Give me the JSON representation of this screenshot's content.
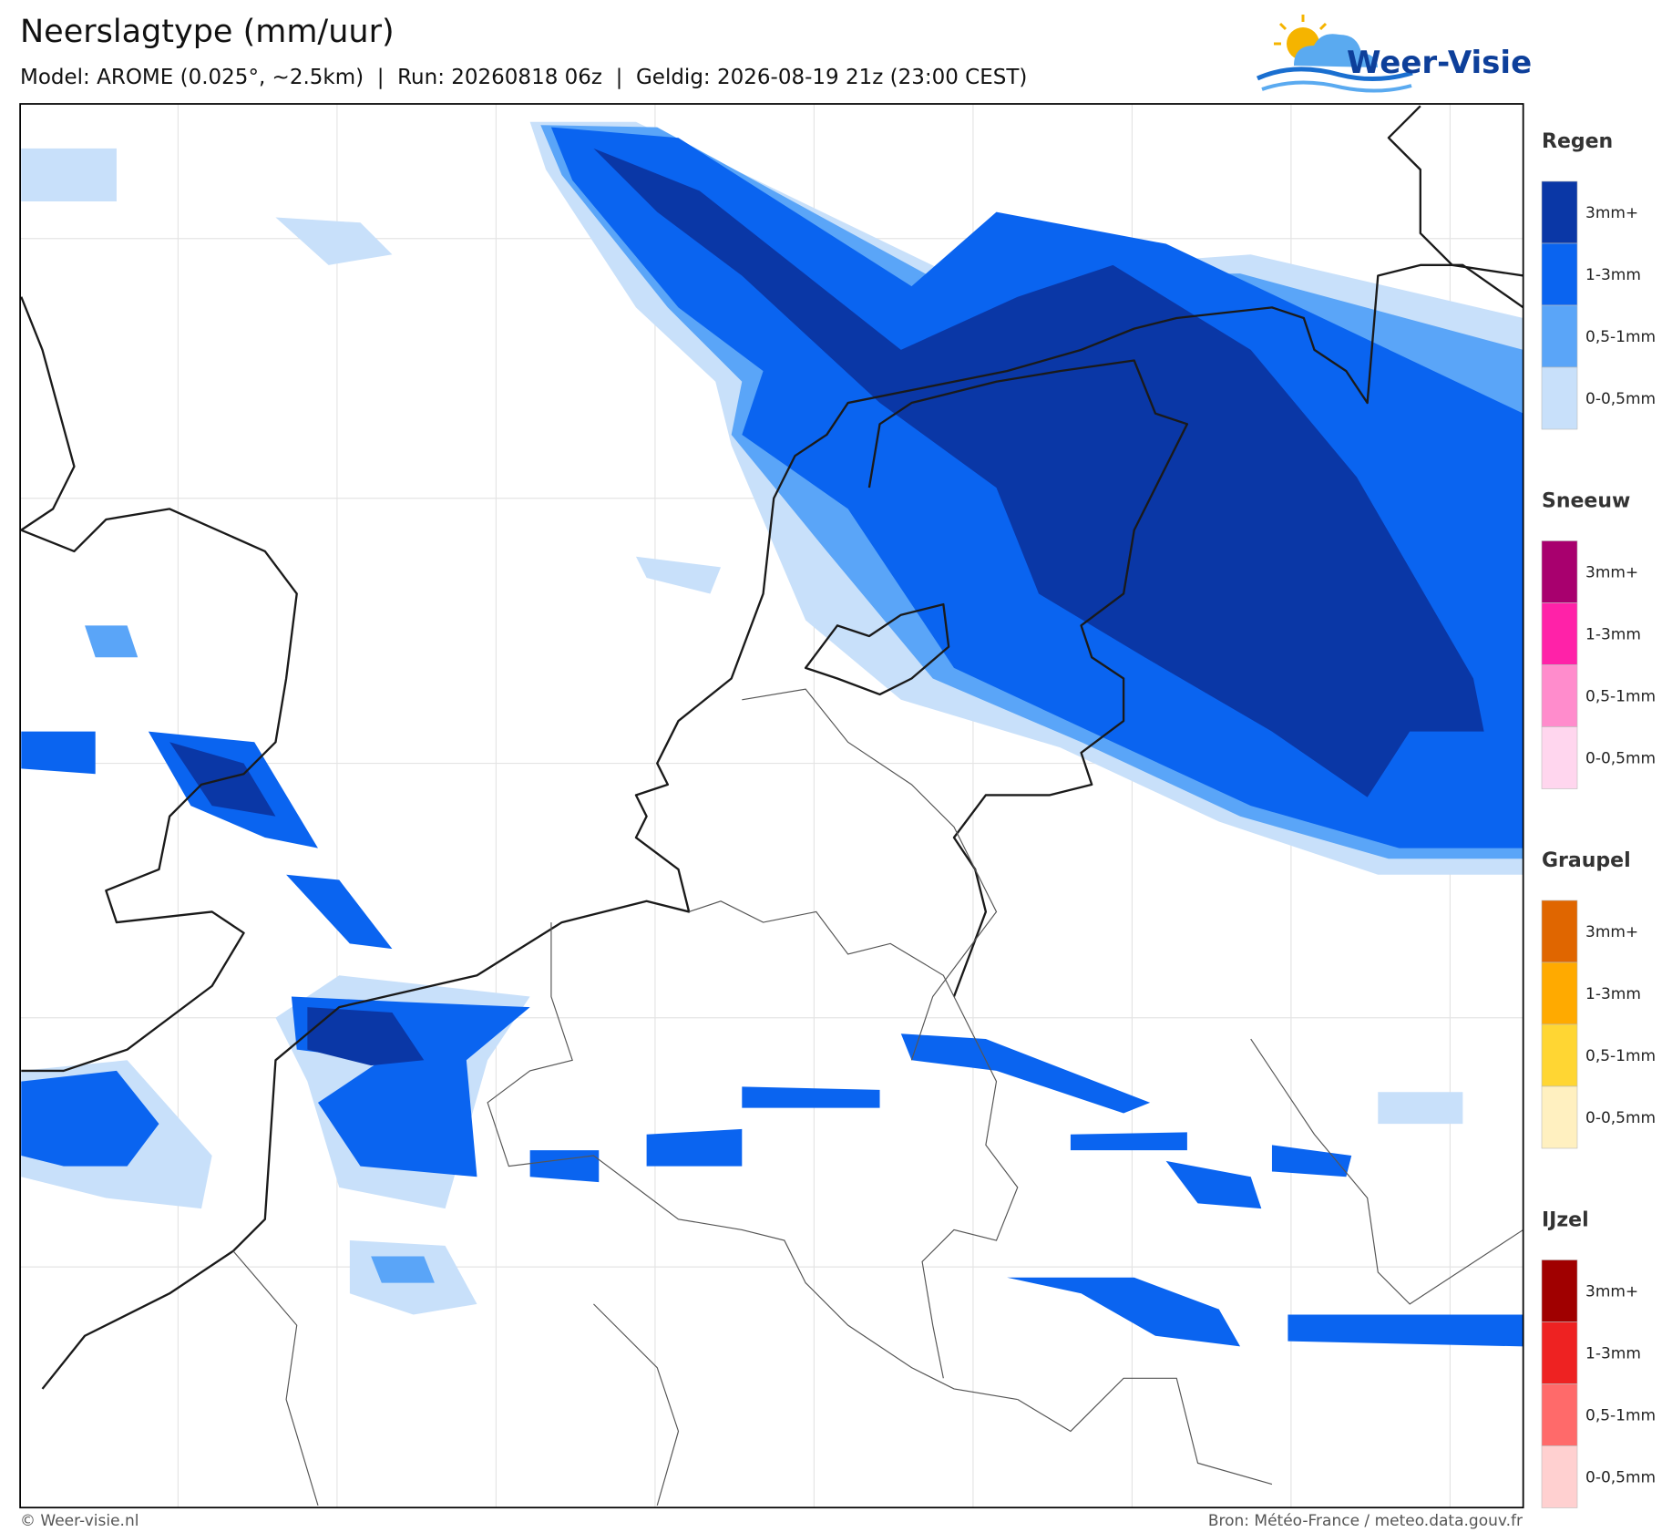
{
  "header": {
    "title": "Neerslagtype (mm/uur)",
    "subtitle": "Model: AROME (0.025°, ~2.5km)  |  Run: 20260818 06z  |  Geldig: 2026-08-19 21z (23:00 CEST)",
    "logo": "Weer-Visie"
  },
  "legend": [
    {
      "name": "Regen",
      "items": [
        {
          "label": "3mm+",
          "color": "#0a37a6"
        },
        {
          "label": "1-3mm",
          "color": "#0a64f0"
        },
        {
          "label": "0,5-1mm",
          "color": "#5aa5f8"
        },
        {
          "label": "0-0,5mm",
          "color": "#c8e0fa"
        }
      ]
    },
    {
      "name": "Sneeuw",
      "items": [
        {
          "label": "3mm+",
          "color": "#a8006e"
        },
        {
          "label": "1-3mm",
          "color": "#ff22a8"
        },
        {
          "label": "0,5-1mm",
          "color": "#ff8ccc"
        },
        {
          "label": "0-0,5mm",
          "color": "#ffd6ee"
        }
      ]
    },
    {
      "name": "Graupel",
      "items": [
        {
          "label": "3mm+",
          "color": "#e06600"
        },
        {
          "label": "1-3mm",
          "color": "#ffaa00"
        },
        {
          "label": "0,5-1mm",
          "color": "#ffd633"
        },
        {
          "label": "0-0,5mm",
          "color": "#fff0c0"
        }
      ]
    },
    {
      "name": "IJzel",
      "items": [
        {
          "label": "3mm+",
          "color": "#a00000"
        },
        {
          "label": "1-3mm",
          "color": "#ee2222"
        },
        {
          "label": "0,5-1mm",
          "color": "#ff6a6a"
        },
        {
          "label": "0-0,5mm",
          "color": "#ffd0d0"
        }
      ]
    }
  ],
  "footer": {
    "credit": "© Weer-visie.nl",
    "source": "Bron: Météo-France / meteo.data.gouv.fr"
  }
}
